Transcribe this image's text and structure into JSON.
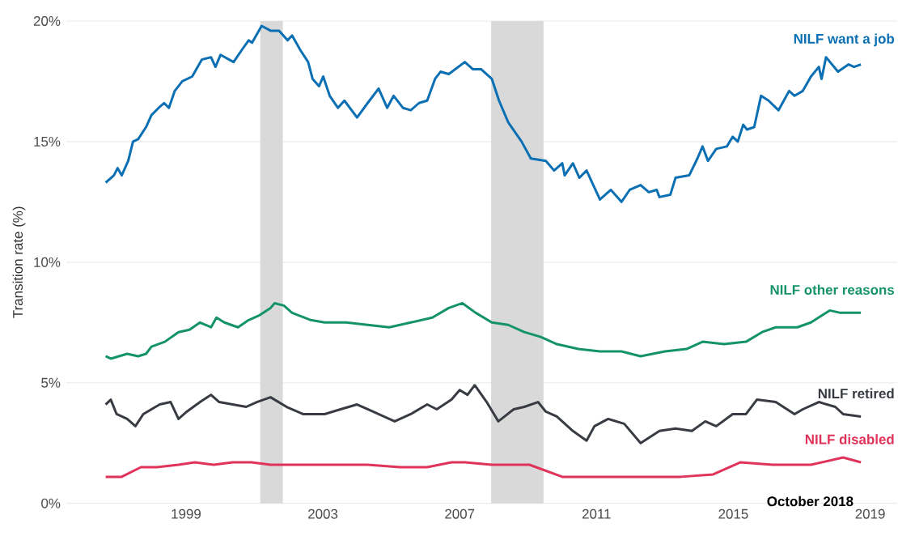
{
  "chart_data": {
    "type": "line",
    "ylabel": "Transition rate (%)",
    "xlim": [
      1995.5,
      2019.8
    ],
    "xticks": [
      1999,
      2003,
      2007,
      2011,
      2015,
      2019
    ],
    "ylim": [
      0,
      20
    ],
    "yticks": [
      {
        "value": 0,
        "label": "0%"
      },
      {
        "value": 5,
        "label": "5%"
      },
      {
        "value": 10,
        "label": "10%"
      },
      {
        "value": 15,
        "label": "15%"
      },
      {
        "value": 20,
        "label": "20%"
      }
    ],
    "grid": "y",
    "legend": false,
    "line_style": "solid",
    "bands": [
      {
        "axis": "x",
        "from": 2001.17,
        "to": 2001.83,
        "color": "#d9d9d9"
      },
      {
        "axis": "x",
        "from": 2007.92,
        "to": 2009.45,
        "color": "#d9d9d9"
      }
    ],
    "annotations": [
      "October 2018"
    ],
    "series": [
      {
        "name": "NILF want a job",
        "color": "#0b6fb3",
        "x": [
          1996.65,
          1996.89,
          1997.0,
          1997.12,
          1997.31,
          1997.45,
          1997.6,
          1997.83,
          1997.99,
          1998.2,
          1998.36,
          1998.5,
          1998.67,
          1998.89,
          1999.18,
          1999.46,
          1999.73,
          1999.86,
          2000.01,
          2000.39,
          2000.63,
          2000.83,
          2000.93,
          2001.21,
          2001.47,
          2001.72,
          2001.97,
          2002.1,
          2002.34,
          2002.57,
          2002.7,
          2002.89,
          2003.01,
          2003.2,
          2003.44,
          2003.63,
          2004.0,
          2004.31,
          2004.63,
          2004.88,
          2005.07,
          2005.34,
          2005.57,
          2005.81,
          2006.05,
          2006.28,
          2006.44,
          2006.68,
          2007.15,
          2007.39,
          2007.63,
          2007.94,
          2008.15,
          2008.42,
          2008.81,
          2009.08,
          2009.52,
          2009.76,
          2010.0,
          2010.07,
          2010.31,
          2010.5,
          2010.71,
          2011.1,
          2011.42,
          2011.73,
          2011.97,
          2012.29,
          2012.53,
          2012.76,
          2012.84,
          2013.16,
          2013.31,
          2013.71,
          2013.95,
          2014.1,
          2014.26,
          2014.5,
          2014.81,
          2014.98,
          2015.13,
          2015.29,
          2015.4,
          2015.61,
          2015.81,
          2016.03,
          2016.32,
          2016.63,
          2016.79,
          2017.03,
          2017.27,
          2017.5,
          2017.58,
          2017.71,
          2018.06,
          2018.37,
          2018.53,
          2018.73
        ],
        "values": [
          13.3,
          13.6,
          13.9,
          13.6,
          14.2,
          15.0,
          15.1,
          15.6,
          16.1,
          16.4,
          16.6,
          16.4,
          17.1,
          17.5,
          17.7,
          18.4,
          18.5,
          18.1,
          18.6,
          18.3,
          18.8,
          19.2,
          19.1,
          19.8,
          19.6,
          19.6,
          19.2,
          19.4,
          18.8,
          18.3,
          17.6,
          17.3,
          17.7,
          16.9,
          16.4,
          16.7,
          16.0,
          16.6,
          17.2,
          16.4,
          16.9,
          16.4,
          16.3,
          16.6,
          16.7,
          17.6,
          17.9,
          17.8,
          18.3,
          18.0,
          18.0,
          17.6,
          16.7,
          15.8,
          15.0,
          14.3,
          14.2,
          13.8,
          14.1,
          13.6,
          14.1,
          13.5,
          13.8,
          12.6,
          13.0,
          12.5,
          13.0,
          13.2,
          12.9,
          13.0,
          12.7,
          12.8,
          13.5,
          13.6,
          14.3,
          14.8,
          14.2,
          14.7,
          14.8,
          15.2,
          15.0,
          15.7,
          15.5,
          15.6,
          16.9,
          16.7,
          16.3,
          17.1,
          16.9,
          17.1,
          17.7,
          18.1,
          17.6,
          18.5,
          17.9,
          18.2,
          18.1,
          18.2
        ]
      },
      {
        "name": "NILF other reasons",
        "color": "#14936a",
        "x": [
          1996.65,
          1996.8,
          1997.28,
          1997.6,
          1997.83,
          1997.99,
          1998.38,
          1998.78,
          1999.1,
          1999.41,
          1999.73,
          1999.89,
          2000.12,
          2000.52,
          2000.83,
          2001.15,
          2001.47,
          2001.59,
          2001.86,
          2002.1,
          2002.65,
          2003.05,
          2003.68,
          2004.31,
          2004.94,
          2005.57,
          2006.2,
          2006.68,
          2007.08,
          2007.47,
          2007.94,
          2008.42,
          2008.89,
          2009.37,
          2009.84,
          2010.47,
          2011.1,
          2011.73,
          2012.29,
          2013.0,
          2013.63,
          2014.1,
          2014.73,
          2015.37,
          2015.84,
          2016.24,
          2016.87,
          2017.27,
          2017.82,
          2018.13,
          2018.37,
          2018.73
        ],
        "values": [
          6.1,
          6.0,
          6.2,
          6.1,
          6.2,
          6.5,
          6.7,
          7.1,
          7.2,
          7.5,
          7.3,
          7.7,
          7.5,
          7.3,
          7.6,
          7.8,
          8.1,
          8.3,
          8.2,
          7.9,
          7.6,
          7.5,
          7.5,
          7.4,
          7.3,
          7.5,
          7.7,
          8.1,
          8.3,
          7.9,
          7.5,
          7.4,
          7.1,
          6.9,
          6.6,
          6.4,
          6.3,
          6.3,
          6.1,
          6.3,
          6.4,
          6.7,
          6.6,
          6.7,
          7.1,
          7.3,
          7.3,
          7.5,
          8.0,
          7.9,
          7.9,
          7.9
        ]
      },
      {
        "name": "NILF retired",
        "color": "#383b43",
        "x": [
          1996.65,
          1996.8,
          1996.97,
          1997.28,
          1997.52,
          1997.75,
          1998.23,
          1998.55,
          1998.78,
          1999.02,
          1999.41,
          1999.73,
          1999.97,
          2000.36,
          2000.76,
          2001.07,
          2001.47,
          2001.94,
          2002.42,
          2003.05,
          2003.52,
          2004.0,
          2004.47,
          2005.1,
          2005.57,
          2006.05,
          2006.33,
          2006.76,
          2007.0,
          2007.23,
          2007.44,
          2007.79,
          2008.13,
          2008.58,
          2008.89,
          2009.29,
          2009.52,
          2009.84,
          2010.31,
          2010.71,
          2010.94,
          2011.34,
          2011.81,
          2012.29,
          2012.84,
          2013.31,
          2013.79,
          2014.18,
          2014.5,
          2014.98,
          2015.37,
          2015.69,
          2016.24,
          2016.79,
          2017.03,
          2017.5,
          2017.98,
          2018.21,
          2018.73
        ],
        "values": [
          4.1,
          4.3,
          3.7,
          3.5,
          3.2,
          3.7,
          4.1,
          4.2,
          3.5,
          3.8,
          4.2,
          4.5,
          4.2,
          4.1,
          4.0,
          4.2,
          4.4,
          4.0,
          3.7,
          3.7,
          3.9,
          4.1,
          3.8,
          3.4,
          3.7,
          4.1,
          3.9,
          4.3,
          4.7,
          4.5,
          4.9,
          4.2,
          3.4,
          3.9,
          4.0,
          4.2,
          3.8,
          3.6,
          3.0,
          2.6,
          3.2,
          3.5,
          3.3,
          2.5,
          3.0,
          3.1,
          3.0,
          3.4,
          3.2,
          3.7,
          3.7,
          4.3,
          4.2,
          3.7,
          3.9,
          4.2,
          4.0,
          3.7,
          3.6
        ]
      },
      {
        "name": "NILF disabled",
        "color": "#e0335a",
        "x": [
          1996.65,
          1997.12,
          1997.68,
          1998.15,
          1998.78,
          1999.26,
          1999.81,
          2000.36,
          2000.91,
          2001.47,
          2002.18,
          2003.05,
          2004.31,
          2005.26,
          2006.05,
          2006.76,
          2007.15,
          2007.94,
          2009.04,
          2010.0,
          2011.1,
          2012.36,
          2013.47,
          2014.41,
          2015.2,
          2016.15,
          2017.27,
          2018.21,
          2018.73
        ],
        "values": [
          1.1,
          1.1,
          1.5,
          1.5,
          1.6,
          1.7,
          1.6,
          1.7,
          1.7,
          1.6,
          1.6,
          1.6,
          1.6,
          1.5,
          1.5,
          1.7,
          1.7,
          1.6,
          1.6,
          1.1,
          1.1,
          1.1,
          1.1,
          1.2,
          1.7,
          1.6,
          1.6,
          1.9,
          1.7
        ]
      }
    ]
  }
}
